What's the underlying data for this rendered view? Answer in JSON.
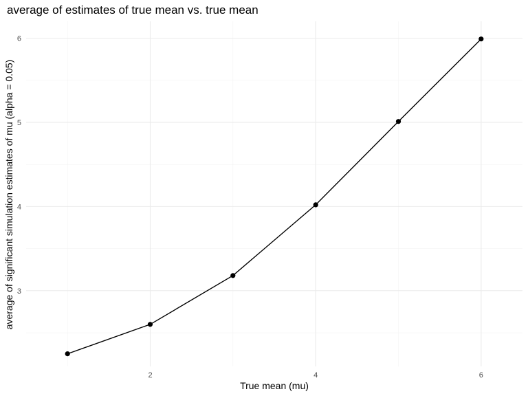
{
  "chart_data": {
    "type": "line",
    "title": "average of estimates of true mean vs. true mean",
    "xlabel": "True mean (mu)",
    "ylabel": "average of significant simulation estimates of mu (alpha = 0.05)",
    "x": [
      1,
      2,
      3,
      4,
      5,
      6
    ],
    "series": [
      {
        "values": [
          2.25,
          2.6,
          3.18,
          4.02,
          5.01,
          5.99
        ]
      }
    ],
    "xticks": [
      2,
      4,
      6
    ],
    "yticks": [
      3,
      4,
      5,
      6
    ],
    "xlim": [
      0.5,
      6.5
    ],
    "ylim": [
      2.1,
      6.2
    ],
    "grid": true,
    "colors": {
      "line": "#000000",
      "points": "#000000",
      "grid": "#ebebeb"
    }
  }
}
